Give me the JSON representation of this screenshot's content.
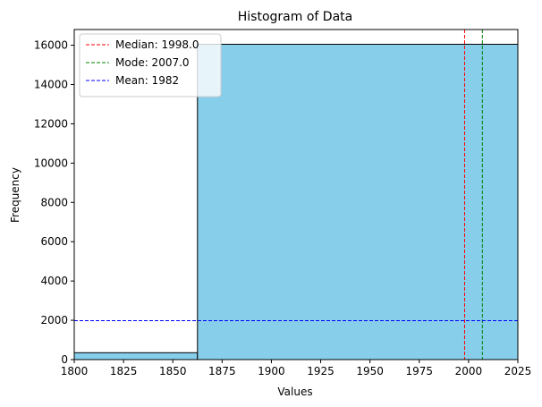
{
  "chart_data": {
    "type": "bar",
    "title": "Histogram of Data",
    "xlabel": "Values",
    "ylabel": "Frequency",
    "xlim": [
      1800,
      2025
    ],
    "ylim": [
      0,
      16800
    ],
    "x_ticks": [
      1800,
      1825,
      1850,
      1875,
      1900,
      1925,
      1950,
      1975,
      2000,
      2025
    ],
    "y_ticks": [
      0,
      2000,
      4000,
      6000,
      8000,
      10000,
      12000,
      14000,
      16000
    ],
    "bins": [
      {
        "x0": 1800,
        "x1": 1862.5,
        "count": 350
      },
      {
        "x0": 1862.5,
        "x1": 2025,
        "count": 16050
      }
    ],
    "bar_color": "#87CEEB",
    "bar_edge_color": "#000000",
    "vertical_lines": [
      {
        "label": "Median: 1998.0",
        "value": 1998.0,
        "color": "#ff0000"
      },
      {
        "label": "Mode: 2007.0",
        "value": 2007.0,
        "color": "#008000"
      }
    ],
    "horizontal_lines": [
      {
        "label": "Mean: 1982",
        "value": 1982,
        "color": "#0000ff"
      }
    ],
    "legend_position": "top-left",
    "grid": false
  }
}
